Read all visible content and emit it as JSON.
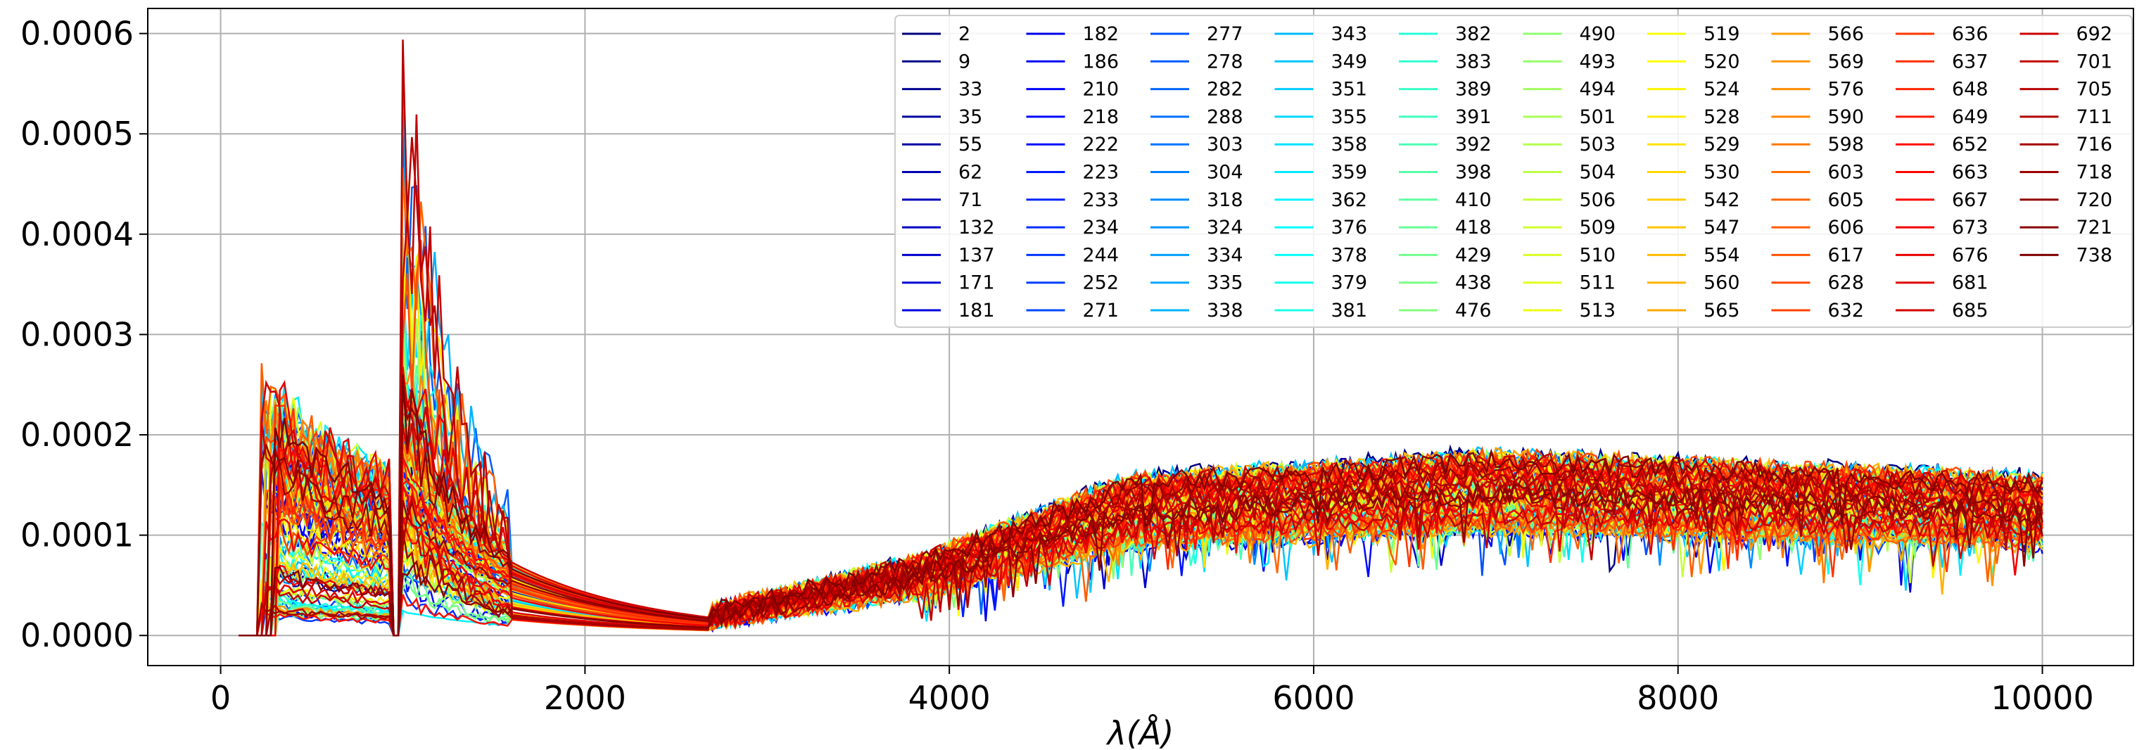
{
  "chart_data": {
    "type": "line",
    "title": "",
    "xlabel": "λ(Å)",
    "ylabel": "",
    "xlim": [
      -400,
      10500
    ],
    "ylim": [
      -3e-05,
      0.000625
    ],
    "xticks": [
      0,
      2000,
      4000,
      6000,
      8000,
      10000
    ],
    "xtick_labels": [
      "0",
      "2000",
      "4000",
      "6000",
      "8000",
      "10000"
    ],
    "yticks": [
      0.0,
      0.0001,
      0.0002,
      0.0003,
      0.0004,
      0.0005,
      0.0006
    ],
    "ytick_labels": [
      "0.0000",
      "0.0001",
      "0.0002",
      "0.0003",
      "0.0004",
      "0.0005",
      "0.0006"
    ],
    "grid": true,
    "legend_placement": "top-right",
    "legend_columns": 10,
    "colormap": "jet",
    "series": [
      {
        "name": "2"
      },
      {
        "name": "9"
      },
      {
        "name": "33"
      },
      {
        "name": "35"
      },
      {
        "name": "55"
      },
      {
        "name": "62"
      },
      {
        "name": "71"
      },
      {
        "name": "132"
      },
      {
        "name": "137"
      },
      {
        "name": "171"
      },
      {
        "name": "181"
      },
      {
        "name": "182"
      },
      {
        "name": "186"
      },
      {
        "name": "210"
      },
      {
        "name": "218"
      },
      {
        "name": "222"
      },
      {
        "name": "223"
      },
      {
        "name": "233"
      },
      {
        "name": "234"
      },
      {
        "name": "244"
      },
      {
        "name": "252"
      },
      {
        "name": "271"
      },
      {
        "name": "277"
      },
      {
        "name": "278"
      },
      {
        "name": "282"
      },
      {
        "name": "288"
      },
      {
        "name": "303"
      },
      {
        "name": "304"
      },
      {
        "name": "318"
      },
      {
        "name": "324"
      },
      {
        "name": "334"
      },
      {
        "name": "335"
      },
      {
        "name": "338"
      },
      {
        "name": "343"
      },
      {
        "name": "349"
      },
      {
        "name": "351"
      },
      {
        "name": "355"
      },
      {
        "name": "358"
      },
      {
        "name": "359"
      },
      {
        "name": "362"
      },
      {
        "name": "376"
      },
      {
        "name": "378"
      },
      {
        "name": "379"
      },
      {
        "name": "381"
      },
      {
        "name": "382"
      },
      {
        "name": "383"
      },
      {
        "name": "389"
      },
      {
        "name": "391"
      },
      {
        "name": "392"
      },
      {
        "name": "398"
      },
      {
        "name": "410"
      },
      {
        "name": "418"
      },
      {
        "name": "429"
      },
      {
        "name": "438"
      },
      {
        "name": "476"
      },
      {
        "name": "490"
      },
      {
        "name": "493"
      },
      {
        "name": "494"
      },
      {
        "name": "501"
      },
      {
        "name": "503"
      },
      {
        "name": "504"
      },
      {
        "name": "506"
      },
      {
        "name": "509"
      },
      {
        "name": "510"
      },
      {
        "name": "511"
      },
      {
        "name": "513"
      },
      {
        "name": "519"
      },
      {
        "name": "520"
      },
      {
        "name": "524"
      },
      {
        "name": "528"
      },
      {
        "name": "529"
      },
      {
        "name": "530"
      },
      {
        "name": "542"
      },
      {
        "name": "547"
      },
      {
        "name": "554"
      },
      {
        "name": "560"
      },
      {
        "name": "565"
      },
      {
        "name": "566"
      },
      {
        "name": "569"
      },
      {
        "name": "576"
      },
      {
        "name": "590"
      },
      {
        "name": "598"
      },
      {
        "name": "603"
      },
      {
        "name": "605"
      },
      {
        "name": "606"
      },
      {
        "name": "617"
      },
      {
        "name": "628"
      },
      {
        "name": "632"
      },
      {
        "name": "636"
      },
      {
        "name": "637"
      },
      {
        "name": "648"
      },
      {
        "name": "649"
      },
      {
        "name": "652"
      },
      {
        "name": "663"
      },
      {
        "name": "667"
      },
      {
        "name": "673"
      },
      {
        "name": "676"
      },
      {
        "name": "681"
      },
      {
        "name": "685"
      },
      {
        "name": "692"
      },
      {
        "name": "701"
      },
      {
        "name": "705"
      },
      {
        "name": "711"
      },
      {
        "name": "716"
      },
      {
        "name": "718"
      },
      {
        "name": "720"
      },
      {
        "name": "721"
      },
      {
        "name": "738"
      }
    ]
  }
}
